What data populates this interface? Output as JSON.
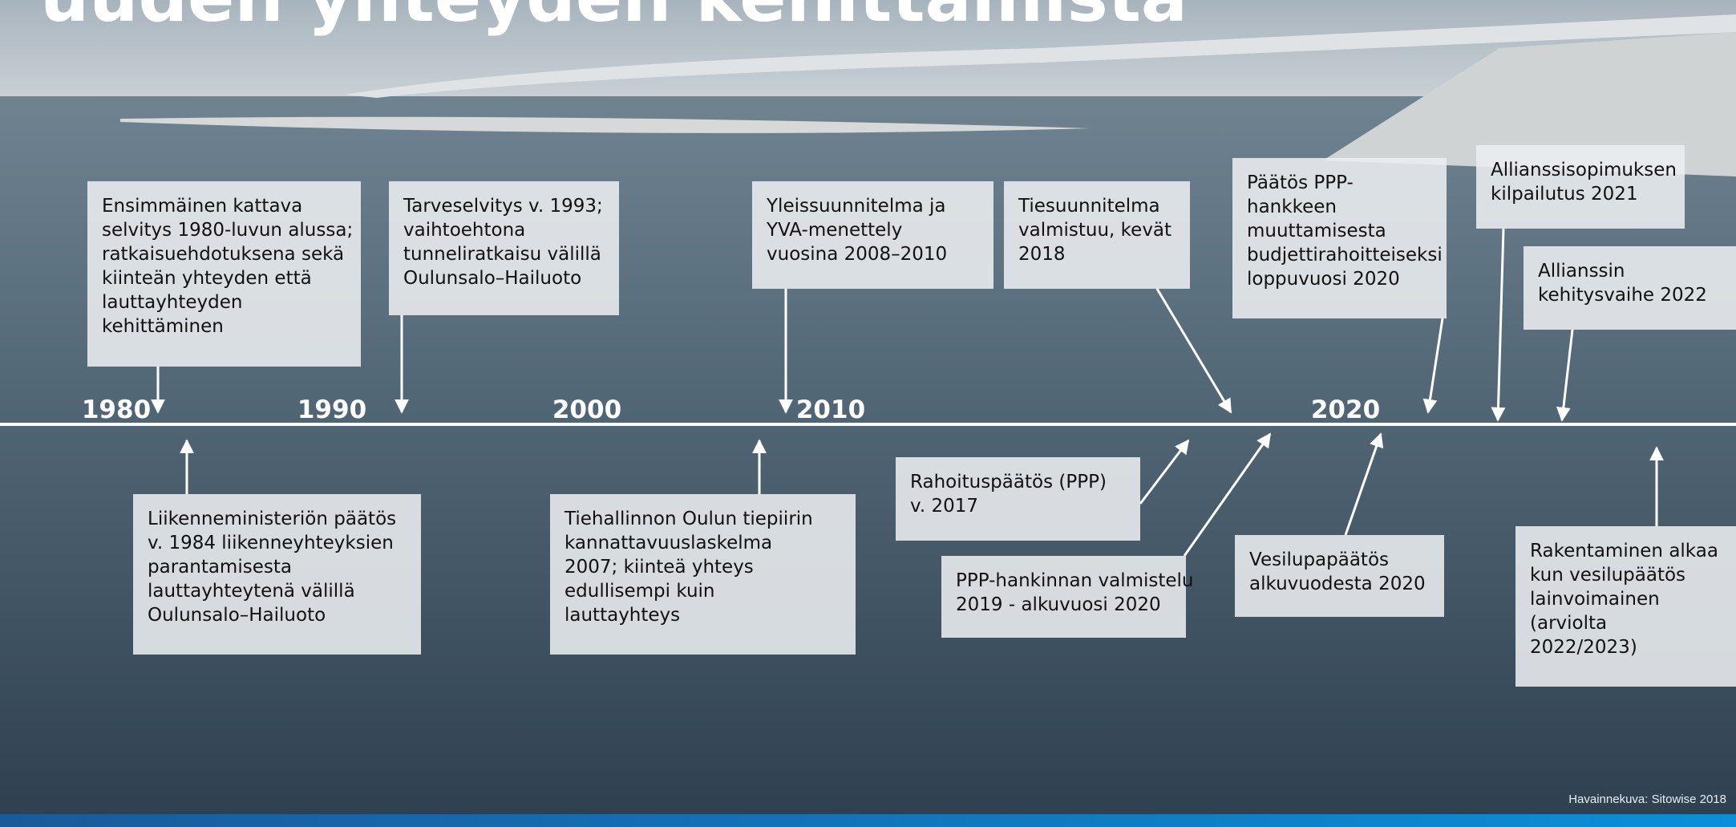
{
  "title": "uuden yhteyden kehittämistä",
  "timeline": {
    "years": [
      "1980",
      "1990",
      "2000",
      "2010",
      "2020"
    ]
  },
  "events_above": [
    {
      "lines": [
        "Ensimmäinen kattava",
        "selvitys 1980-luvun alussa;",
        "ratkaisuehdotuksena sekä",
        "kiinteän yhteyden että",
        "lauttayhteyden",
        "kehittäminen"
      ]
    },
    {
      "lines": [
        "Tarveselvitys v. 1993;",
        "vaihtoehtona",
        "tunneliratkaisu välillä",
        "Oulunsalo–Hailuoto"
      ]
    },
    {
      "lines": [
        "Yleissuunnitelma ja",
        "YVA-menettely",
        "vuosina 2008–2010"
      ]
    },
    {
      "lines": [
        "Tiesuunnitelma",
        "valmistuu, kevät",
        "2018"
      ]
    },
    {
      "lines": [
        "Päätös PPP-",
        "hankkeen",
        "muuttamisesta",
        "budjettirahoitteiseksi",
        "loppuvuosi 2020"
      ]
    },
    {
      "lines": [
        "Allianssisopimuksen",
        "kilpailutus 2021"
      ]
    },
    {
      "lines": [
        "Allianssin",
        "kehitysvaihe 2022"
      ]
    }
  ],
  "events_below": [
    {
      "lines": [
        "Liikenneministeriön päätös",
        "v. 1984 liikenneyhteyksien",
        "parantamisesta",
        "lauttayhteytenä välillä",
        "Oulunsalo–Hailuoto"
      ]
    },
    {
      "lines": [
        "Tiehallinnon Oulun tiepiirin",
        "kannattavuuslaskelma",
        "2007; kiinteä yhteys",
        "edullisempi kuin",
        "lauttayhteys"
      ]
    },
    {
      "lines": [
        "Rahoituspäätös (PPP)",
        "v. 2017"
      ]
    },
    {
      "lines": [
        "PPP-hankinnan valmistelu",
        "2019 - alkuvuosi 2020"
      ]
    },
    {
      "lines": [
        "Vesilupapäätös",
        "alkuvuodesta 2020"
      ]
    },
    {
      "lines": [
        "Rakentaminen alkaa",
        "kun vesilupäätös",
        "lainvoimainen",
        "(arviolta",
        "2022/2023)"
      ]
    }
  ],
  "credit": "Havainnekuva: Sitowise 2018"
}
